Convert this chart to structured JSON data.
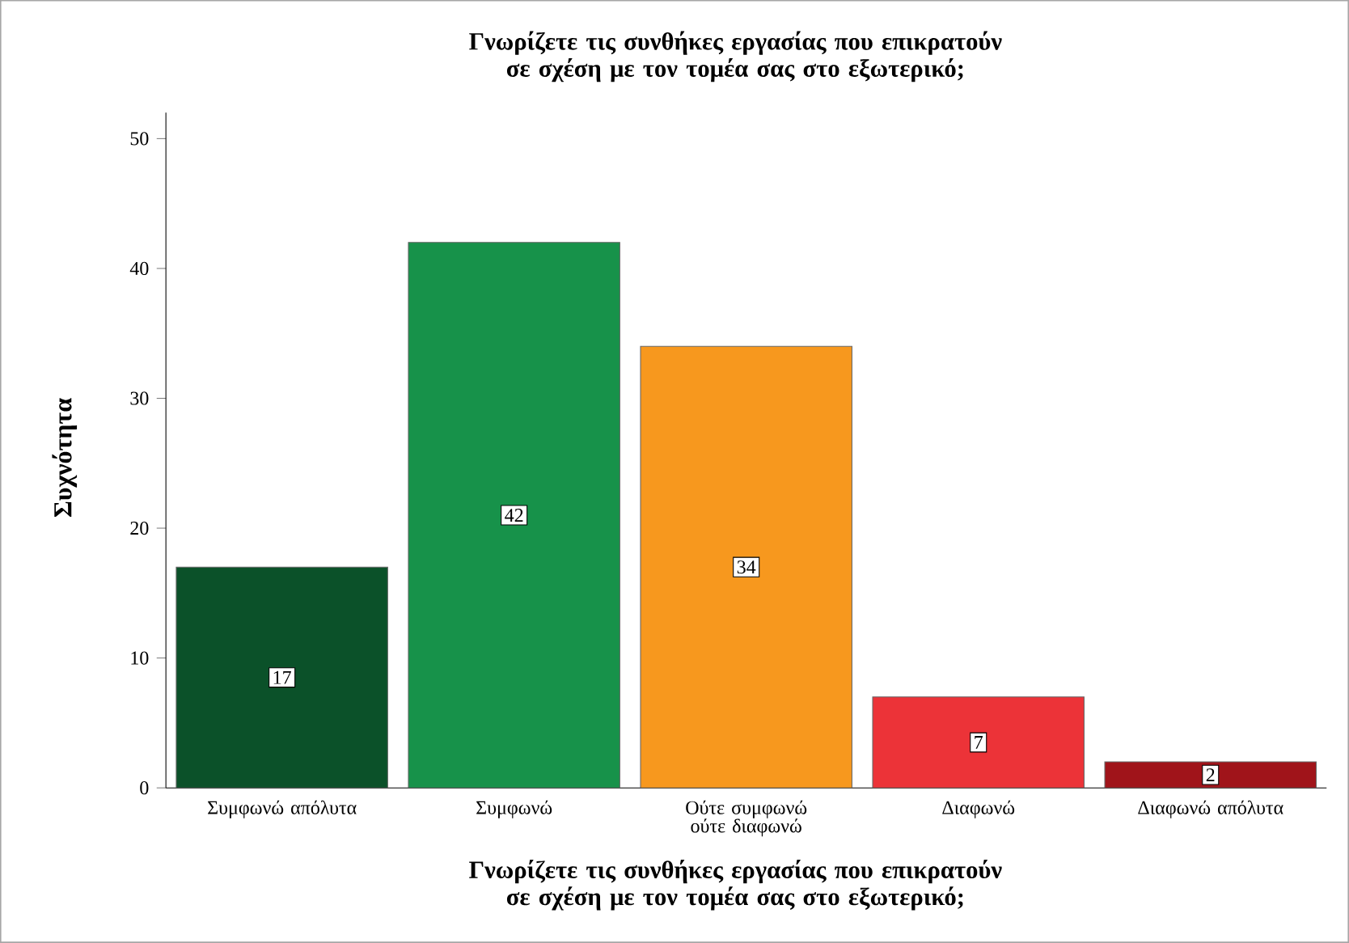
{
  "chart_data": {
    "type": "bar",
    "title": "Γνωρίζετε τις συνθήκες εργασίας που επικρατούν σε σχέση με τον τομέα σας στο εξωτερικό;",
    "xlabel": "Γνωρίζετε τις συνθήκες εργασίας που επικρατούν σε σχέση με τον τομέα σας στο εξωτερικό;",
    "ylabel": "Συχνότητα",
    "categories": [
      "Συμφωνώ απόλυτα",
      "Συμφωνώ",
      "Ούτε συμφωνώ ούτε διαφωνώ",
      "Διαφωνώ",
      "Διαφωνώ απόλυτα"
    ],
    "values": [
      17,
      42,
      34,
      7,
      2
    ],
    "colors": [
      "#0b5129",
      "#17924a",
      "#f7981e",
      "#ec3338",
      "#a0141a"
    ],
    "ylim": [
      0,
      52
    ],
    "yticks": [
      0,
      10,
      20,
      30,
      40,
      50
    ],
    "data_labels": true
  }
}
